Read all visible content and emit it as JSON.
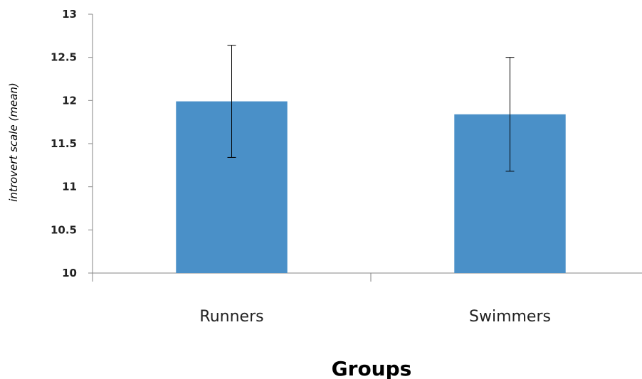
{
  "chart_data": {
    "type": "bar",
    "categories": [
      "Runners",
      "Swimmers"
    ],
    "values": [
      11.99,
      11.84
    ],
    "error_bars": [
      {
        "low": 11.34,
        "high": 12.64
      },
      {
        "low": 11.18,
        "high": 12.5
      }
    ],
    "title": "",
    "xlabel": "Groups",
    "ylabel": "introvert scale (mean)",
    "ylim": [
      10,
      13
    ],
    "yticks": [
      "10",
      "10.5",
      "11",
      "11.5",
      "12",
      "12.5",
      "13"
    ],
    "grid": false,
    "bar_color": "#4a90c8",
    "axis_color": "#868686",
    "error_bar_color": "#000000"
  }
}
